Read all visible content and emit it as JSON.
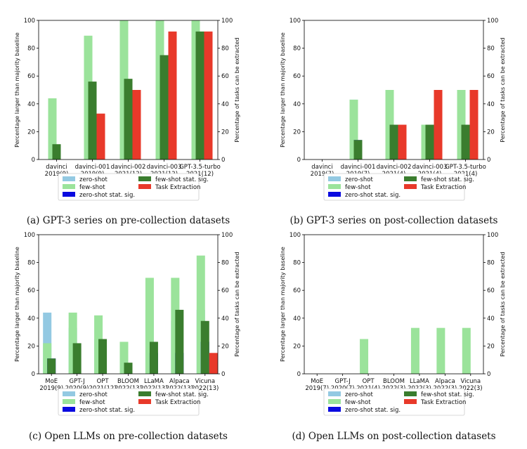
{
  "colors": {
    "zero_shot": "#93c9e2",
    "few_shot": "#9be39b",
    "zero_shot_sig": "#0a0ae0",
    "few_shot_sig": "#3a7d2e",
    "task_extraction": "#e8392a"
  },
  "chart_data": [
    {
      "id": "a",
      "type": "bar",
      "title": "",
      "caption": "(a) GPT-3 series on pre-collection datasets",
      "ylabel": "Percentage larger than majority baseline",
      "ylabel_right": "Percentage of tasks can be extracted",
      "ylim": [
        0,
        100
      ],
      "yticks": [
        0,
        20,
        40,
        60,
        80,
        100
      ],
      "categories": [
        [
          "davinci",
          "2019(9)"
        ],
        [
          "davinci-001",
          "2019(9)"
        ],
        [
          "davinci-002",
          "2021(12)"
        ],
        [
          "davinci-003",
          "2021(12)"
        ],
        [
          "GPT-3.5-turbo",
          "2021(12)"
        ]
      ],
      "series": [
        {
          "name": "zero-shot",
          "key": "zero_shot",
          "values": [
            11,
            56,
            67,
            100,
            100
          ]
        },
        {
          "name": "few-shot",
          "key": "few_shot",
          "values": [
            44,
            89,
            100,
            100,
            100
          ]
        },
        {
          "name": "zero-shot stat. sig.",
          "key": "zero_shot_sig",
          "values": [
            0,
            11,
            42,
            67,
            58
          ]
        },
        {
          "name": "few-shot stat. sig.",
          "key": "few_shot_sig",
          "values": [
            11,
            56,
            58,
            75,
            92
          ]
        },
        {
          "name": "Task Extraction",
          "key": "task_extraction",
          "values": [
            0,
            33,
            50,
            92,
            92
          ]
        }
      ]
    },
    {
      "id": "b",
      "type": "bar",
      "title": "",
      "caption": "(b) GPT-3 series on post-collection datasets",
      "ylabel": "Percentage larger than majority baseline",
      "ylabel_right": "Percentage of tasks can be extracted",
      "ylim": [
        0,
        100
      ],
      "yticks": [
        0,
        20,
        40,
        60,
        80,
        100
      ],
      "categories": [
        [
          "davinci",
          "2019(7)"
        ],
        [
          "davinci-001",
          "2019(7)"
        ],
        [
          "davinci-002",
          "2021(4)"
        ],
        [
          "davinci-003",
          "2021(4)"
        ],
        [
          "GPT-3.5-turbo",
          "2021(4)"
        ]
      ],
      "series": [
        {
          "name": "zero-shot",
          "key": "zero_shot",
          "values": [
            0,
            43,
            50,
            25,
            25
          ]
        },
        {
          "name": "few-shot",
          "key": "few_shot",
          "values": [
            0,
            43,
            50,
            25,
            50
          ]
        },
        {
          "name": "zero-shot stat. sig.",
          "key": "zero_shot_sig",
          "values": [
            0,
            14,
            25,
            0,
            0
          ]
        },
        {
          "name": "few-shot stat. sig.",
          "key": "few_shot_sig",
          "values": [
            0,
            14,
            25,
            25,
            25
          ]
        },
        {
          "name": "Task Extraction",
          "key": "task_extraction",
          "values": [
            0,
            0,
            25,
            50,
            50
          ]
        }
      ]
    },
    {
      "id": "c",
      "type": "bar",
      "title": "",
      "caption": "(c) Open LLMs on pre-collection datasets",
      "ylabel": "Percentage larger than majority baseline",
      "ylabel_right": "Percentage of tasks can be extracted",
      "ylim": [
        0,
        100
      ],
      "yticks": [
        0,
        20,
        40,
        60,
        80,
        100
      ],
      "categories": [
        [
          "MoE",
          "2019(9)"
        ],
        [
          "GPT-J",
          "2020(9)"
        ],
        [
          "OPT",
          "2021(12)"
        ],
        [
          "BLOOM",
          "2022(13)"
        ],
        [
          "LLaMA",
          "2022(13)"
        ],
        [
          "Alpaca",
          "2022(13)"
        ],
        [
          "Vicuna",
          "2022(13)"
        ]
      ],
      "series": [
        {
          "name": "zero-shot",
          "key": "zero_shot",
          "values": [
            44,
            33,
            25,
            15,
            46,
            38,
            46
          ]
        },
        {
          "name": "few-shot",
          "key": "few_shot",
          "values": [
            22,
            44,
            42,
            23,
            69,
            69,
            85
          ]
        },
        {
          "name": "zero-shot stat. sig.",
          "key": "zero_shot_sig",
          "values": [
            11,
            0,
            0,
            0,
            15,
            15,
            23
          ]
        },
        {
          "name": "few-shot stat. sig.",
          "key": "few_shot_sig",
          "values": [
            11,
            22,
            25,
            8,
            23,
            46,
            38
          ]
        },
        {
          "name": "Task Extraction",
          "key": "task_extraction",
          "values": [
            0,
            0,
            0,
            0,
            0,
            0,
            15
          ]
        }
      ]
    },
    {
      "id": "d",
      "type": "bar",
      "title": "",
      "caption": "(d) Open LLMs on post-collection datasets",
      "ylabel": "Percentage larger than majority baseline",
      "ylabel_right": "Percentage of tasks can be extracted",
      "ylim": [
        0,
        100
      ],
      "yticks": [
        0,
        20,
        40,
        60,
        80,
        100
      ],
      "categories": [
        [
          "MoE",
          "2019(7)"
        ],
        [
          "GPT-J",
          "2020(7)"
        ],
        [
          "OPT",
          "2021(4)"
        ],
        [
          "BLOOM",
          "2022(3)"
        ],
        [
          "LLaMA",
          "2022(3)"
        ],
        [
          "Alpaca",
          "2022(3)"
        ],
        [
          "Vicuna",
          "2022(3)"
        ]
      ],
      "series": [
        {
          "name": "zero-shot",
          "key": "zero_shot",
          "values": [
            0,
            0,
            0,
            0,
            0,
            0,
            0
          ]
        },
        {
          "name": "few-shot",
          "key": "few_shot",
          "values": [
            0,
            0,
            25,
            0,
            33,
            33,
            33
          ]
        },
        {
          "name": "zero-shot stat. sig.",
          "key": "zero_shot_sig",
          "values": [
            0,
            0,
            0,
            0,
            0,
            0,
            0
          ]
        },
        {
          "name": "few-shot stat. sig.",
          "key": "few_shot_sig",
          "values": [
            0,
            0,
            0,
            0,
            0,
            0,
            0
          ]
        },
        {
          "name": "Task Extraction",
          "key": "task_extraction",
          "values": [
            0,
            0,
            0,
            0,
            0,
            0,
            0
          ]
        }
      ]
    }
  ]
}
